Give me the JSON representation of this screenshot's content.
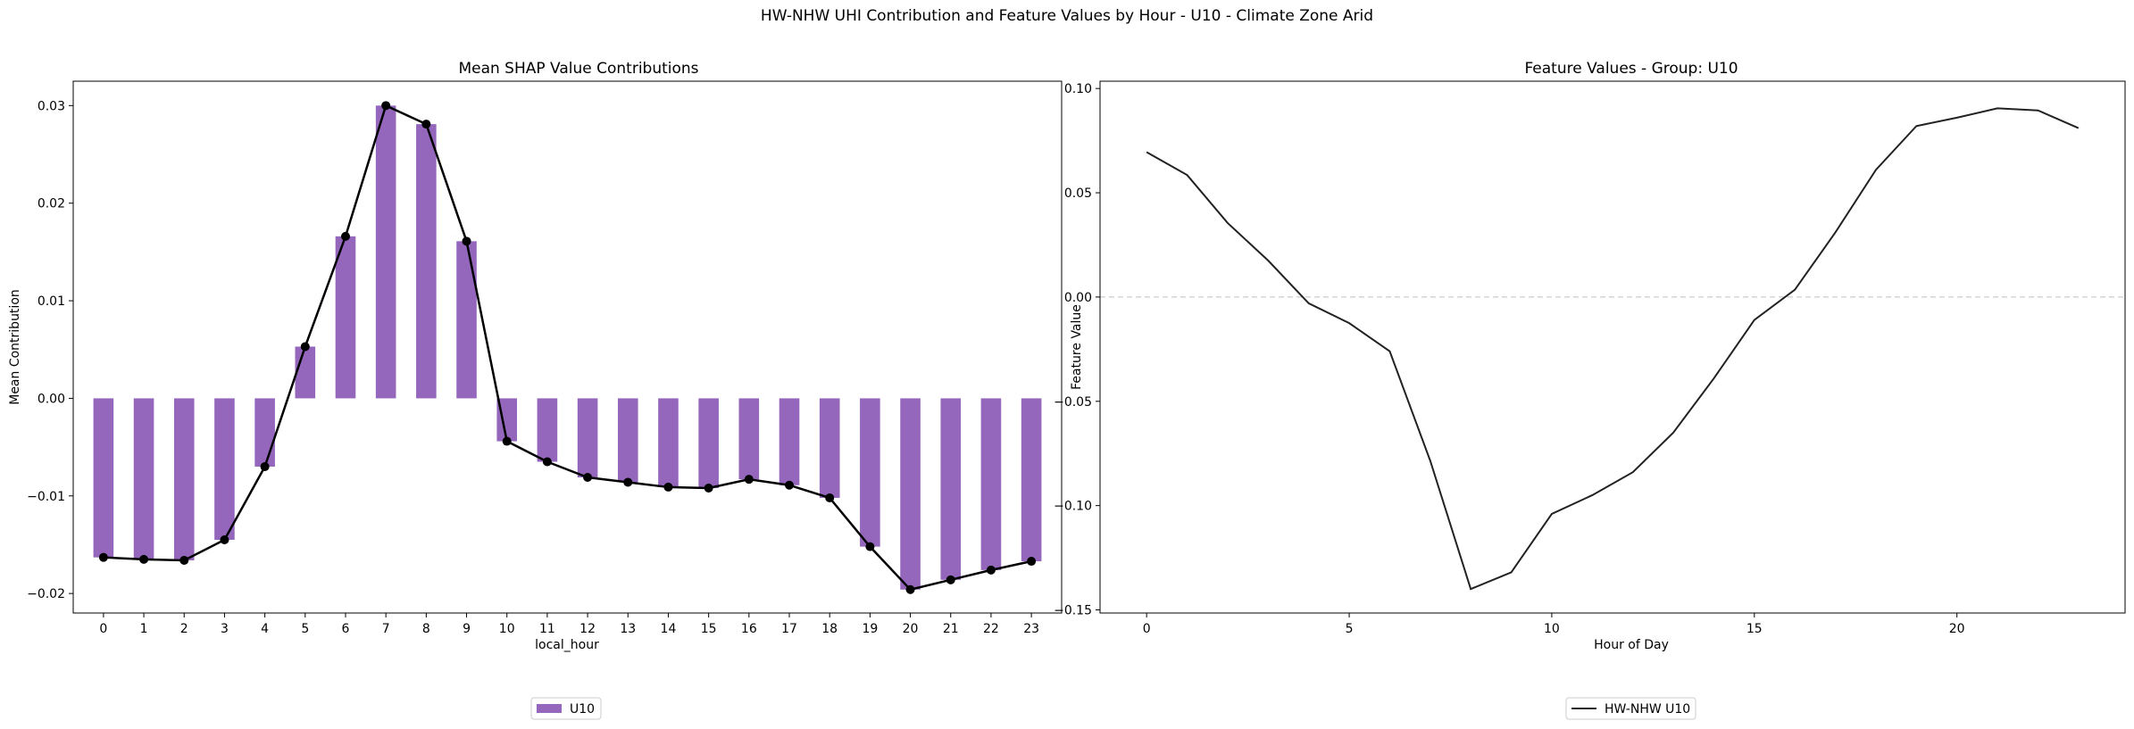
{
  "figure_title": "HW-NHW UHI Contribution and Feature Values by Hour - U10 - Climate Zone Arid",
  "colors": {
    "bar": "#9467bd",
    "line": "#000000",
    "feature_line": "#222222",
    "zero_line": "#cccccc"
  },
  "chart_data": [
    {
      "type": "bar",
      "title": "Mean SHAP Value Contributions",
      "xlabel": "local_hour",
      "ylabel": "Mean Contribution",
      "ylim": [
        -0.022,
        0.0325
      ],
      "yticks": [
        -0.02,
        -0.01,
        0.0,
        0.01,
        0.02,
        0.03
      ],
      "ytick_labels": [
        "−0.02",
        "−0.01",
        "0.00",
        "0.01",
        "0.02",
        "0.03"
      ],
      "categories": [
        "0",
        "1",
        "2",
        "3",
        "4",
        "5",
        "6",
        "7",
        "8",
        "9",
        "10",
        "11",
        "12",
        "13",
        "14",
        "15",
        "16",
        "17",
        "18",
        "19",
        "20",
        "21",
        "22",
        "23"
      ],
      "series": [
        {
          "name": "U10",
          "values": [
            -0.0163,
            -0.0165,
            -0.0166,
            -0.0145,
            -0.007,
            0.0053,
            0.0166,
            0.03,
            0.0281,
            0.0161,
            -0.0044,
            -0.0065,
            -0.0081,
            -0.0086,
            -0.0091,
            -0.0092,
            -0.0083,
            -0.0089,
            -0.0102,
            -0.0152,
            -0.0196,
            -0.0186,
            -0.0176,
            -0.0167
          ]
        }
      ],
      "overlay_line": true,
      "legend": [
        "U10"
      ],
      "legend_position": "bottom-center",
      "grid": false
    },
    {
      "type": "line",
      "title": "Feature Values - Group: U10",
      "xlabel": "Hour of Day",
      "ylabel": "Feature Value",
      "xlim": [
        -1.15,
        24.15
      ],
      "ylim": [
        -0.1515,
        0.1035
      ],
      "xticks": [
        0,
        5,
        10,
        15,
        20
      ],
      "xtick_labels": [
        "0",
        "5",
        "10",
        "15",
        "20"
      ],
      "yticks": [
        -0.15,
        -0.1,
        -0.05,
        0.0,
        0.05,
        0.1
      ],
      "ytick_labels": [
        "−0.15",
        "−0.10",
        "−0.05",
        "0.00",
        "0.05",
        "0.10"
      ],
      "x": [
        0,
        1,
        2,
        3,
        4,
        5,
        6,
        7,
        8,
        9,
        10,
        11,
        12,
        13,
        14,
        15,
        16,
        17,
        18,
        19,
        20,
        21,
        22,
        23
      ],
      "series": [
        {
          "name": "HW-NHW U10",
          "values": [
            0.0695,
            0.0585,
            0.0355,
            0.0175,
            -0.003,
            -0.0125,
            -0.026,
            -0.0785,
            -0.14,
            -0.132,
            -0.104,
            -0.095,
            -0.084,
            -0.065,
            -0.039,
            -0.011,
            0.0035,
            0.031,
            0.061,
            0.082,
            0.086,
            0.0905,
            0.0895,
            0.081
          ]
        }
      ],
      "zero_line": true,
      "legend": [
        "HW-NHW U10"
      ],
      "legend_position": "bottom-center",
      "grid": false
    }
  ]
}
